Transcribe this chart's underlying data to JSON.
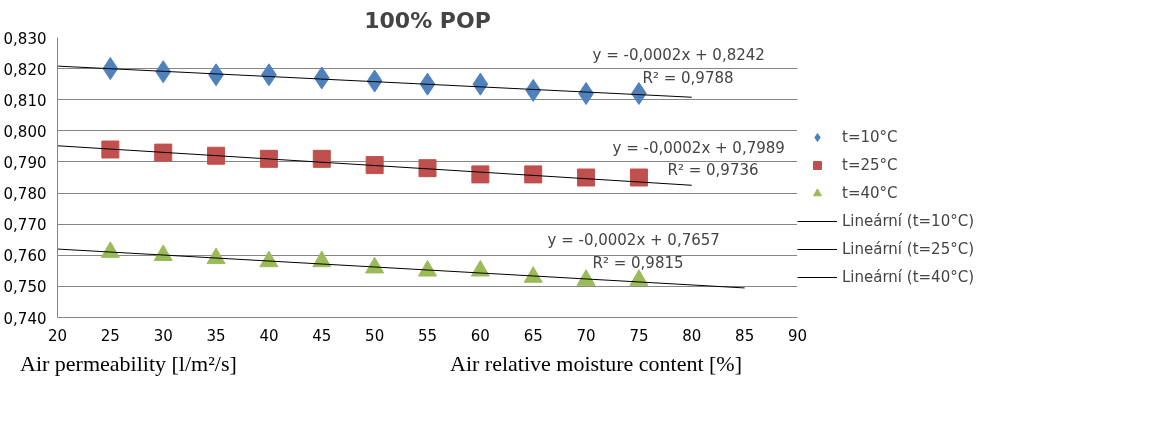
{
  "chart_data": {
    "type": "scatter",
    "title": "100% POP",
    "xlabel": "Air relative moisture content [%]",
    "x": [
      25,
      30,
      35,
      40,
      45,
      50,
      55,
      60,
      65,
      70,
      75
    ],
    "series": [
      {
        "name": "t=10°C",
        "color": "#4f81bd",
        "marker": "diamond",
        "values": [
          0.82,
          0.819,
          0.818,
          0.818,
          0.817,
          0.816,
          0.815,
          0.815,
          0.813,
          0.812,
          0.812
        ]
      },
      {
        "name": "t=25°C",
        "color": "#c0504d",
        "marker": "square",
        "values": [
          0.794,
          0.793,
          0.792,
          0.791,
          0.791,
          0.789,
          0.788,
          0.786,
          0.786,
          0.785,
          0.785
        ]
      },
      {
        "name": "t=40°C",
        "color": "#9bbb59",
        "marker": "triangle",
        "values": [
          0.761,
          0.76,
          0.759,
          0.758,
          0.758,
          0.756,
          0.755,
          0.755,
          0.753,
          0.752,
          0.752
        ]
      },
      {
        "name": "Lineární (t=10°C)",
        "type": "line",
        "color": "#000000",
        "marker": "none",
        "x": [
          20,
          80
        ],
        "values": [
          0.8208,
          0.8108
        ]
      },
      {
        "name": "Lineární (t=25°C)",
        "type": "line",
        "color": "#000000",
        "marker": "none",
        "x": [
          20,
          80
        ],
        "values": [
          0.7952,
          0.7825
        ]
      },
      {
        "name": "Lineární (t=40°C)",
        "type": "line",
        "color": "#000000",
        "marker": "none",
        "x": [
          20,
          85
        ],
        "values": [
          0.762,
          0.7495
        ]
      }
    ],
    "xlim": [
      20,
      90
    ],
    "xticks": [
      20,
      25,
      30,
      35,
      40,
      45,
      50,
      55,
      60,
      65,
      70,
      75,
      80,
      85,
      90
    ],
    "ylim": [
      0.74,
      0.83
    ],
    "yticks": [
      {
        "value": 0.74,
        "label": "0,740"
      },
      {
        "value": 0.75,
        "label": "0,750"
      },
      {
        "value": 0.76,
        "label": "0,760"
      },
      {
        "value": 0.77,
        "label": "0,770"
      },
      {
        "value": 0.78,
        "label": "0,780"
      },
      {
        "value": 0.79,
        "label": "0,790"
      },
      {
        "value": 0.8,
        "label": "0,800"
      },
      {
        "value": 0.81,
        "label": "0,810"
      },
      {
        "value": 0.82,
        "label": "0,820"
      },
      {
        "value": 0.83,
        "label": "0,830"
      }
    ],
    "grid": "y",
    "legend": "right",
    "annotations": [
      "y = -0,0002x + 0,8242",
      "R² = 0,9788",
      "y = -0,0002x + 0,7989",
      "R² = 0,9736",
      "y = -0,0002x + 0,7657",
      "R² = 0,9815",
      "Air permeability [l/m²/s]"
    ]
  }
}
